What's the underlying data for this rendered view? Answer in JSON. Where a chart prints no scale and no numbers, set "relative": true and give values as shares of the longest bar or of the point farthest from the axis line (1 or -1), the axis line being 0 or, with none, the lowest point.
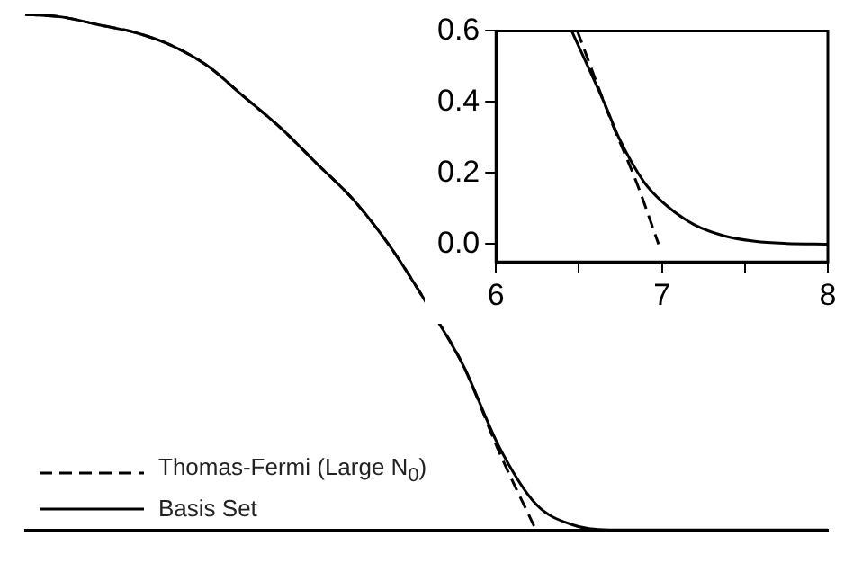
{
  "chart_data": [
    {
      "type": "line",
      "relative": true,
      "legend": "bottom left",
      "marker": "none",
      "grid": false,
      "categories": [
        null,
        null,
        null,
        null,
        null,
        null,
        null,
        null,
        null,
        null,
        null,
        null,
        null,
        null,
        null,
        null,
        null,
        null,
        null,
        null,
        null,
        null,
        null
      ],
      "series": [
        {
          "name": "Thomas-Fermi (Large N$_{0}$)",
          "color": "#000000",
          "line_style": "dashed",
          "values": [
            1.0,
            0.995,
            0.98,
            0.965,
            0.94,
            0.9,
            0.84,
            0.78,
            0.71,
            0.64,
            0.55,
            0.44,
            0.32,
            0.15,
            0.0,
            null,
            null,
            null,
            null,
            null,
            null,
            null,
            null
          ]
        },
        {
          "name": "Basis Set",
          "color": "#000000",
          "line_style": "solid",
          "values": [
            1.0,
            0.995,
            0.98,
            0.965,
            0.94,
            0.9,
            0.84,
            0.78,
            0.71,
            0.64,
            0.55,
            0.44,
            0.32,
            0.16,
            0.05,
            0.01,
            0.0,
            0.0,
            0.0,
            0.0,
            0.0,
            0.0,
            0.0
          ]
        }
      ]
    },
    {
      "type": "line",
      "legend": false,
      "marker": "none",
      "grid": false,
      "xlim": [
        6,
        8
      ],
      "xticks": [
        6,
        {
          "value": 6.5,
          "label": null
        },
        7,
        {
          "value": 7.5,
          "label": null
        },
        8
      ],
      "ylim": [
        -0.05,
        0.6
      ],
      "yticks": [
        {
          "value": 0,
          "label": "0.0"
        },
        0.2,
        0.4,
        0.6
      ],
      "series": [
        {
          "color": "#000000",
          "line_style": "dashed",
          "x": [
            6.49,
            6.7,
            6.85,
            6.98
          ],
          "values": [
            0.6,
            0.34,
            0.17,
            0.0
          ]
        },
        {
          "color": "#000000",
          "line_style": "solid",
          "x": [
            6.456,
            6.66,
            6.74,
            6.89,
            7.0,
            7.19,
            7.37,
            7.56,
            7.75,
            8.0
          ],
          "values": [
            0.6,
            0.39,
            0.3,
            0.176,
            0.12,
            0.056,
            0.024,
            0.008,
            0.002,
            0.0
          ]
        }
      ]
    }
  ]
}
